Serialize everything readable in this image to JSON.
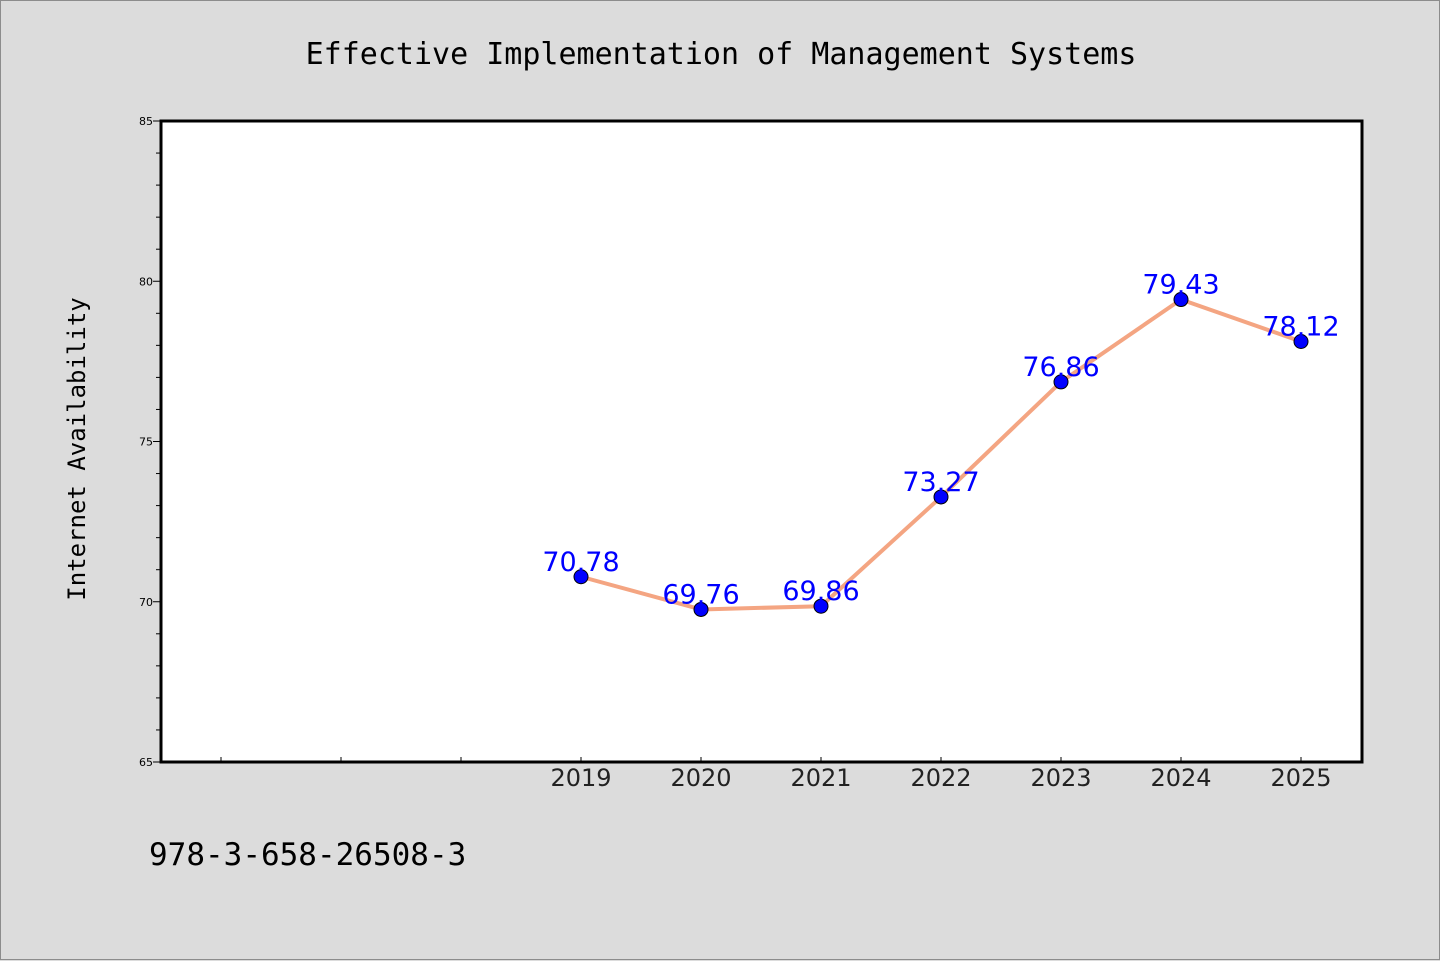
{
  "chart_data": {
    "type": "line",
    "title": "Effective Implementation of Management Systems",
    "ylabel": "Internet Availability",
    "xlabel": "",
    "categories": [
      "2019",
      "2020",
      "2021",
      "2022",
      "2023",
      "2024",
      "2025"
    ],
    "series": [
      {
        "values": [
          70.78,
          69.76,
          69.86,
          73.27,
          76.86,
          79.43,
          78.12
        ],
        "line_color": "#f4a582",
        "marker_color": "#0000ff",
        "label_color": "#0000ff"
      }
    ],
    "ylim": [
      65,
      85
    ],
    "yticks": [
      65,
      70,
      75,
      80,
      85
    ],
    "x_leading_empty_slots": 3,
    "grid": false,
    "legend": "none"
  },
  "footer": {
    "code": "978-3-658-26508-3"
  },
  "colors": {
    "background": "#dcdcdc",
    "plot_background": "#ffffff",
    "axes": "#000000"
  }
}
